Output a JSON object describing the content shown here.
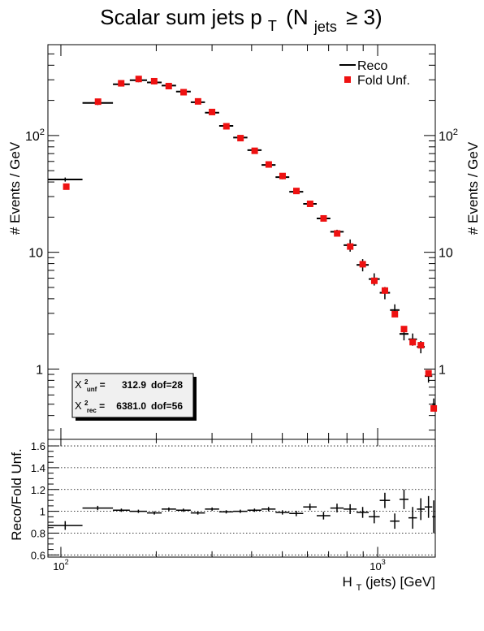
{
  "chart_data": {
    "type": "scatter",
    "title_main": "Scalar sum jets p",
    "title_sub_t": "T",
    "title_paren_open": "(N",
    "title_sub_jets": "jets",
    "title_tail": "≥ 3)",
    "xlabel_main": "H",
    "xlabel_sub": "T",
    "xlabel_tail": "(jets) [GeV]",
    "ylabel_top": "# Events / GeV",
    "ylabel_bottom": "Reco/Fold Unf.",
    "x_scale": "log",
    "y_scale_top": "log",
    "xlim": [
      91,
      1520
    ],
    "ylim_top": [
      0.25,
      600
    ],
    "ylim_bottom": [
      0.58,
      1.66
    ],
    "x_tick_labels": [
      {
        "value": 100,
        "base": "10",
        "exp": "2"
      },
      {
        "value": 1000,
        "base": "10",
        "exp": "3"
      }
    ],
    "y_tick_labels_top": [
      {
        "value": 1,
        "text": "1"
      },
      {
        "value": 10,
        "text": "10"
      },
      {
        "value": 100,
        "base": "10",
        "exp": "2"
      }
    ],
    "y_tick_labels_bottom": [
      "0.6",
      "0.8",
      "1",
      "1.2",
      "1.4",
      "1.6"
    ],
    "y_ticks_bottom": [
      0.6,
      0.8,
      1.0,
      1.2,
      1.4,
      1.6
    ],
    "legend": {
      "placement": "top-right",
      "entries": [
        {
          "name": "Reco",
          "marker": "line"
        },
        {
          "name": "Fold Unf.",
          "marker": "square"
        }
      ]
    },
    "stats_box": {
      "placement": "bottom-left",
      "rows": [
        {
          "sym": "X",
          "sup": "2",
          "sub": "unf",
          "value": "312.9",
          "dof": "dof=28"
        },
        {
          "sym": "X",
          "sup": "2",
          "sub": "rec",
          "value": "6381.0",
          "dof": "dof=56"
        }
      ]
    },
    "colors": {
      "reco": "#000000",
      "fold": "#ee1111"
    },
    "series": [
      {
        "name": "Reco",
        "bins": [
          [
            91,
            117,
            42
          ],
          [
            117,
            146,
            190
          ],
          [
            146,
            165,
            275
          ],
          [
            165,
            187,
            298
          ],
          [
            187,
            208,
            285
          ],
          [
            208,
            231,
            268
          ],
          [
            231,
            257,
            238
          ],
          [
            257,
            285,
            193
          ],
          [
            285,
            316,
            157
          ],
          [
            316,
            350,
            121
          ],
          [
            350,
            388,
            96
          ],
          [
            388,
            430,
            75
          ],
          [
            430,
            476,
            56
          ],
          [
            476,
            526,
            44
          ],
          [
            526,
            582,
            33
          ],
          [
            582,
            642,
            26
          ],
          [
            642,
            709,
            19.5
          ],
          [
            709,
            781,
            15
          ],
          [
            781,
            858,
            11.5
          ],
          [
            858,
            937,
            7.8
          ],
          [
            937,
            1015,
            5.9
          ],
          [
            1015,
            1094,
            4.5
          ],
          [
            1094,
            1172,
            3.2
          ],
          [
            1172,
            1251,
            2.0
          ],
          [
            1251,
            1330,
            1.8
          ],
          [
            1330,
            1408,
            1.55
          ],
          [
            1408,
            1487,
            0.87
          ],
          [
            1487,
            1520,
            0.5
          ]
        ]
      },
      {
        "name": "Fold Unf.",
        "points": [
          [
            104,
            36.5
          ],
          [
            131,
            195
          ],
          [
            155,
            280
          ],
          [
            176,
            305
          ],
          [
            197,
            292
          ],
          [
            219,
            265
          ],
          [
            244,
            235
          ],
          [
            271,
            196
          ],
          [
            300,
            159
          ],
          [
            333,
            120
          ],
          [
            369,
            95
          ],
          [
            409,
            74
          ],
          [
            453,
            56.5
          ],
          [
            501,
            45
          ],
          [
            554,
            33.5
          ],
          [
            612,
            26
          ],
          [
            675,
            19.5
          ],
          [
            745,
            14.5
          ],
          [
            819,
            11.2
          ],
          [
            897,
            7.9
          ],
          [
            976,
            5.7
          ],
          [
            1054,
            4.7
          ],
          [
            1133,
            2.95
          ],
          [
            1211,
            2.2
          ],
          [
            1290,
            1.7
          ],
          [
            1369,
            1.6
          ],
          [
            1447,
            0.92
          ],
          [
            1503,
            0.46
          ]
        ]
      },
      {
        "name": "ratio",
        "bins": [
          [
            91,
            117,
            0.87,
            0.04
          ],
          [
            117,
            146,
            1.03,
            0.02
          ],
          [
            146,
            165,
            1.01,
            0.015
          ],
          [
            165,
            187,
            1.0,
            0.015
          ],
          [
            187,
            208,
            0.985,
            0.015
          ],
          [
            208,
            231,
            1.02,
            0.015
          ],
          [
            231,
            257,
            1.01,
            0.015
          ],
          [
            257,
            285,
            0.985,
            0.015
          ],
          [
            285,
            316,
            1.02,
            0.015
          ],
          [
            316,
            350,
            0.995,
            0.015
          ],
          [
            350,
            388,
            1.0,
            0.015
          ],
          [
            388,
            430,
            1.01,
            0.015
          ],
          [
            430,
            476,
            1.02,
            0.02
          ],
          [
            476,
            526,
            0.99,
            0.02
          ],
          [
            526,
            582,
            0.98,
            0.025
          ],
          [
            582,
            642,
            1.04,
            0.03
          ],
          [
            642,
            709,
            0.96,
            0.035
          ],
          [
            709,
            781,
            1.03,
            0.04
          ],
          [
            781,
            858,
            1.02,
            0.045
          ],
          [
            858,
            937,
            0.99,
            0.05
          ],
          [
            937,
            1015,
            0.95,
            0.06
          ],
          [
            1015,
            1094,
            1.1,
            0.07
          ],
          [
            1094,
            1172,
            0.91,
            0.07
          ],
          [
            1172,
            1251,
            1.11,
            0.09
          ],
          [
            1251,
            1330,
            0.94,
            0.1
          ],
          [
            1330,
            1408,
            1.02,
            0.1
          ],
          [
            1408,
            1487,
            1.04,
            0.1
          ],
          [
            1487,
            1520,
            0.95,
            0.15
          ]
        ]
      }
    ]
  }
}
